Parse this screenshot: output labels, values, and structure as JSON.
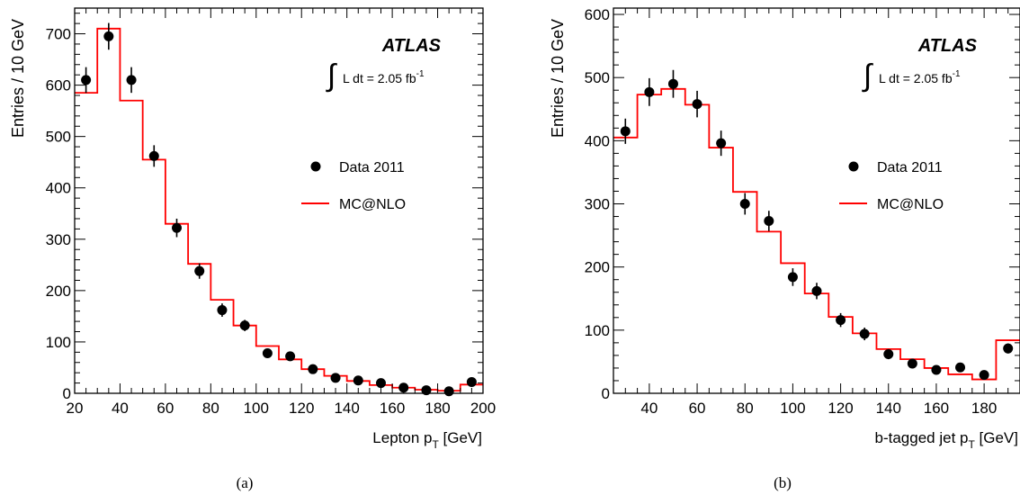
{
  "chart_data": [
    {
      "type": "histogram",
      "panel_label": "(a)",
      "experiment": "ATLAS",
      "lumi_prefix": "L dt = 2.05 fb",
      "lumi_exponent": "-1",
      "xlabel_main": "Lepton p",
      "xlabel_sub": "T",
      "xlabel_unit": " [GeV]",
      "ylabel": "Entries / 10 GeV",
      "xlim": [
        20,
        200
      ],
      "ylim": [
        0,
        750
      ],
      "xticks": [
        20,
        40,
        60,
        80,
        100,
        120,
        140,
        160,
        180,
        200
      ],
      "yticks": [
        0,
        100,
        200,
        300,
        400,
        500,
        600,
        700
      ],
      "legend_placement": "right",
      "series": [
        {
          "name": "Data 2011",
          "kind": "points-with-errors",
          "color": "#000000",
          "x": [
            25,
            35,
            45,
            55,
            65,
            75,
            85,
            95,
            105,
            115,
            125,
            135,
            145,
            155,
            165,
            175,
            185,
            195
          ],
          "y": [
            610,
            695,
            610,
            462,
            322,
            238,
            162,
            132,
            78,
            72,
            47,
            30,
            25,
            20,
            11,
            6,
            4,
            22
          ],
          "err": [
            25,
            26,
            25,
            21,
            18,
            15,
            13,
            11,
            9,
            8,
            7,
            5,
            5,
            4,
            3,
            3,
            2,
            5
          ]
        },
        {
          "name": "MC@NLO",
          "kind": "step",
          "color": "#ff0000",
          "edges": [
            20,
            30,
            40,
            50,
            60,
            70,
            80,
            90,
            100,
            110,
            120,
            130,
            140,
            150,
            160,
            170,
            180,
            190,
            200
          ],
          "values": [
            585,
            710,
            570,
            455,
            330,
            252,
            182,
            132,
            92,
            66,
            47,
            34,
            24,
            16,
            11,
            7,
            5,
            17
          ]
        }
      ]
    },
    {
      "type": "histogram",
      "panel_label": "(b)",
      "experiment": "ATLAS",
      "lumi_prefix": "L dt = 2.05 fb",
      "lumi_exponent": "-1",
      "xlabel_main": "b-tagged jet p",
      "xlabel_sub": "T",
      "xlabel_unit": " [GeV]",
      "ylabel": "Entries / 10 GeV",
      "xlim": [
        25,
        195
      ],
      "ylim": [
        0,
        610
      ],
      "xticks": [
        40,
        60,
        80,
        100,
        120,
        140,
        160,
        180
      ],
      "yticks": [
        0,
        100,
        200,
        300,
        400,
        500,
        600
      ],
      "legend_placement": "right",
      "series": [
        {
          "name": "Data 2011",
          "kind": "points-with-errors",
          "color": "#000000",
          "x": [
            30,
            40,
            50,
            60,
            70,
            80,
            90,
            100,
            110,
            120,
            130,
            140,
            150,
            160,
            170,
            180,
            190
          ],
          "y": [
            415,
            477,
            490,
            458,
            396,
            300,
            273,
            184,
            162,
            116,
            94,
            62,
            47,
            37,
            41,
            29,
            71
          ],
          "err": [
            20,
            22,
            22,
            21,
            20,
            17,
            16,
            14,
            13,
            11,
            10,
            8,
            7,
            6,
            6,
            5,
            8
          ]
        },
        {
          "name": "MC@NLO",
          "kind": "step",
          "color": "#ff0000",
          "edges": [
            25,
            35,
            45,
            55,
            65,
            75,
            85,
            95,
            105,
            115,
            125,
            135,
            145,
            155,
            165,
            175,
            185,
            195
          ],
          "values": [
            405,
            473,
            482,
            457,
            389,
            319,
            256,
            206,
            158,
            121,
            95,
            70,
            54,
            40,
            30,
            22,
            84
          ]
        }
      ]
    }
  ]
}
